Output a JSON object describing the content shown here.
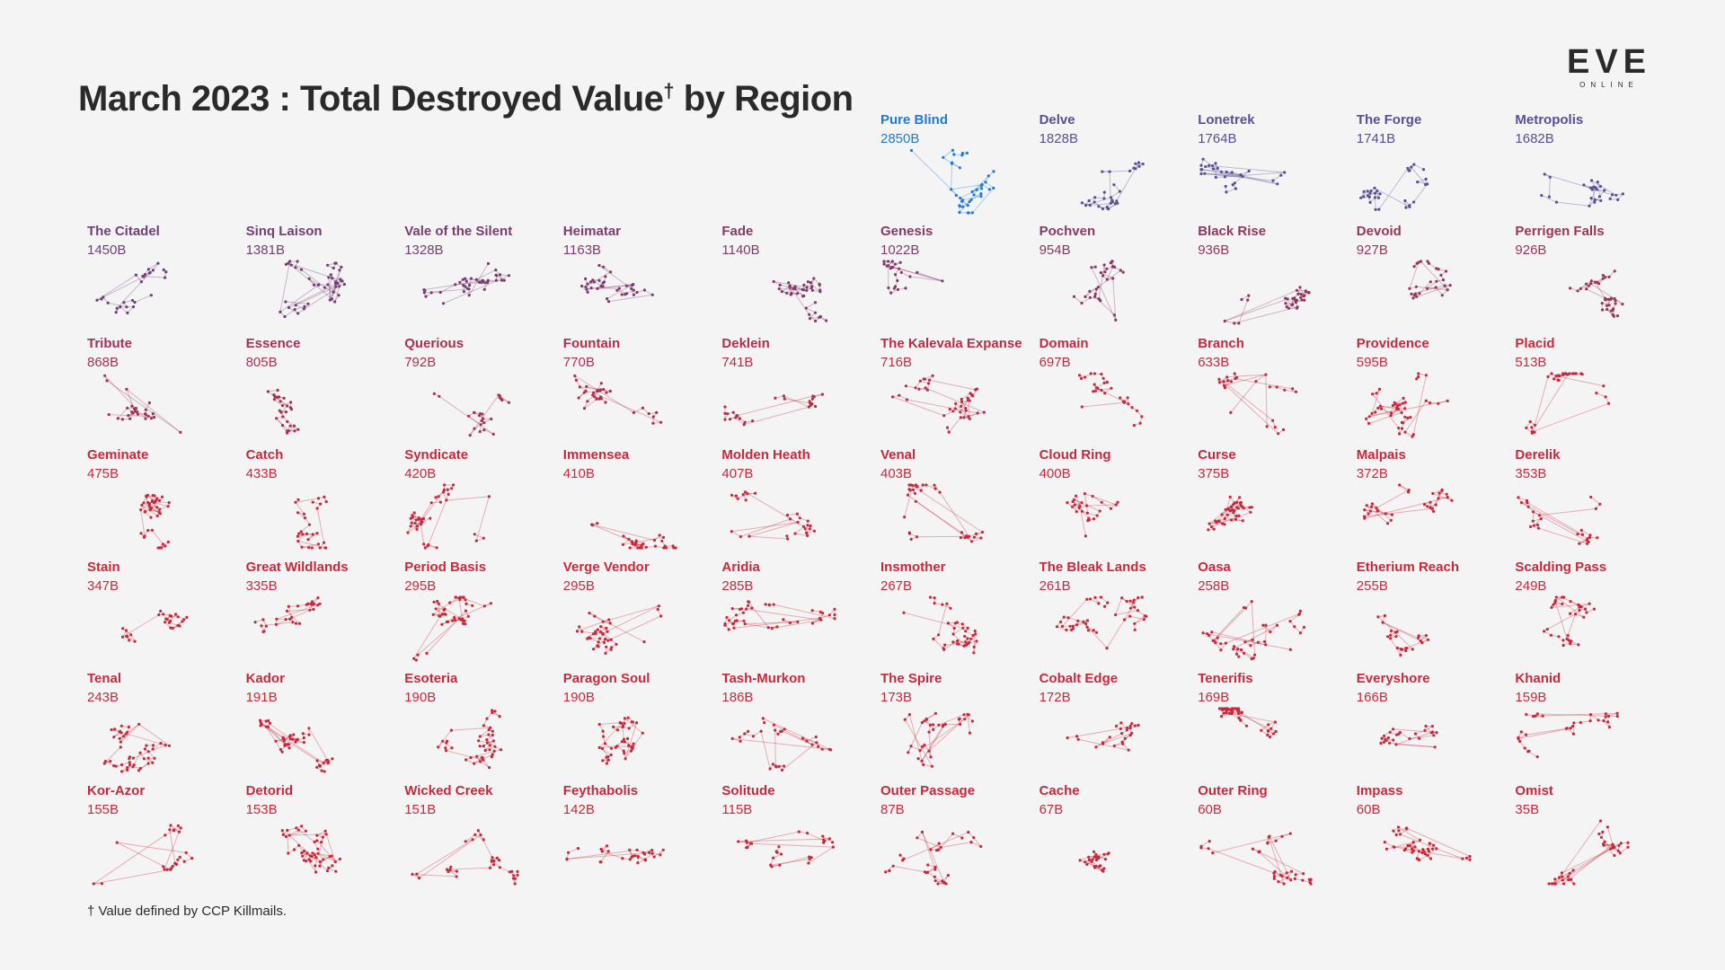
{
  "title_main": "March 2023 : Total Destroyed Value",
  "title_dagger": "†",
  "title_end": " by Region",
  "logo_word": "EVE",
  "logo_sub": "ONLINE",
  "footnote": "† Value defined by CCP Killmails.",
  "colors": {
    "highlight": "#1f7ad6",
    "top_purple": "#5a4e96",
    "low_red": "#c9283a",
    "background": "#f4f4f4",
    "text": "#2a2a2a"
  },
  "chart_data": {
    "type": "small-multiples",
    "unit": "B",
    "regions": [
      {
        "name": "Pure Blind",
        "value": "2850B",
        "amount": 2850
      },
      {
        "name": "Delve",
        "value": "1828B",
        "amount": 1828
      },
      {
        "name": "Lonetrek",
        "value": "1764B",
        "amount": 1764
      },
      {
        "name": "The Forge",
        "value": "1741B",
        "amount": 1741
      },
      {
        "name": "Metropolis",
        "value": "1682B",
        "amount": 1682
      },
      {
        "name": "The Citadel",
        "value": "1450B",
        "amount": 1450
      },
      {
        "name": "Sinq Laison",
        "value": "1381B",
        "amount": 1381
      },
      {
        "name": "Vale of the Silent",
        "value": "1328B",
        "amount": 1328
      },
      {
        "name": "Heimatar",
        "value": "1163B",
        "amount": 1163
      },
      {
        "name": "Fade",
        "value": "1140B",
        "amount": 1140
      },
      {
        "name": "Genesis",
        "value": "1022B",
        "amount": 1022
      },
      {
        "name": "Pochven",
        "value": "954B",
        "amount": 954
      },
      {
        "name": "Black Rise",
        "value": "936B",
        "amount": 936
      },
      {
        "name": "Devoid",
        "value": "927B",
        "amount": 927
      },
      {
        "name": "Perrigen Falls",
        "value": "926B",
        "amount": 926
      },
      {
        "name": "Tribute",
        "value": "868B",
        "amount": 868
      },
      {
        "name": "Essence",
        "value": "805B",
        "amount": 805
      },
      {
        "name": "Querious",
        "value": "792B",
        "amount": 792
      },
      {
        "name": "Fountain",
        "value": "770B",
        "amount": 770
      },
      {
        "name": "Deklein",
        "value": "741B",
        "amount": 741
      },
      {
        "name": "The Kalevala Expanse",
        "value": "716B",
        "amount": 716
      },
      {
        "name": "Domain",
        "value": "697B",
        "amount": 697
      },
      {
        "name": "Branch",
        "value": "633B",
        "amount": 633
      },
      {
        "name": "Providence",
        "value": "595B",
        "amount": 595
      },
      {
        "name": "Placid",
        "value": "513B",
        "amount": 513
      },
      {
        "name": "Geminate",
        "value": "475B",
        "amount": 475
      },
      {
        "name": "Catch",
        "value": "433B",
        "amount": 433
      },
      {
        "name": "Syndicate",
        "value": "420B",
        "amount": 420
      },
      {
        "name": "Immensea",
        "value": "410B",
        "amount": 410
      },
      {
        "name": "Molden Heath",
        "value": "407B",
        "amount": 407
      },
      {
        "name": "Venal",
        "value": "403B",
        "amount": 403
      },
      {
        "name": "Cloud Ring",
        "value": "400B",
        "amount": 400
      },
      {
        "name": "Curse",
        "value": "375B",
        "amount": 375
      },
      {
        "name": "Malpais",
        "value": "372B",
        "amount": 372
      },
      {
        "name": "Derelik",
        "value": "353B",
        "amount": 353
      },
      {
        "name": "Stain",
        "value": "347B",
        "amount": 347
      },
      {
        "name": "Great Wildlands",
        "value": "335B",
        "amount": 335
      },
      {
        "name": "Period Basis",
        "value": "295B",
        "amount": 295
      },
      {
        "name": "Verge Vendor",
        "value": "295B",
        "amount": 295
      },
      {
        "name": "Aridia",
        "value": "285B",
        "amount": 285
      },
      {
        "name": "Insmother",
        "value": "267B",
        "amount": 267
      },
      {
        "name": "The Bleak Lands",
        "value": "261B",
        "amount": 261
      },
      {
        "name": "Oasa",
        "value": "258B",
        "amount": 258
      },
      {
        "name": "Etherium Reach",
        "value": "255B",
        "amount": 255
      },
      {
        "name": "Scalding Pass",
        "value": "249B",
        "amount": 249
      },
      {
        "name": "Tenal",
        "value": "243B",
        "amount": 243
      },
      {
        "name": "Kador",
        "value": "191B",
        "amount": 191
      },
      {
        "name": "Esoteria",
        "value": "190B",
        "amount": 190
      },
      {
        "name": "Paragon Soul",
        "value": "190B",
        "amount": 190
      },
      {
        "name": "Tash-Murkon",
        "value": "186B",
        "amount": 186
      },
      {
        "name": "The Spire",
        "value": "173B",
        "amount": 173
      },
      {
        "name": "Cobalt Edge",
        "value": "172B",
        "amount": 172
      },
      {
        "name": "Tenerifis",
        "value": "169B",
        "amount": 169
      },
      {
        "name": "Everyshore",
        "value": "166B",
        "amount": 166
      },
      {
        "name": "Khanid",
        "value": "159B",
        "amount": 159
      },
      {
        "name": "Kor-Azor",
        "value": "155B",
        "amount": 155
      },
      {
        "name": "Detorid",
        "value": "153B",
        "amount": 153
      },
      {
        "name": "Wicked Creek",
        "value": "151B",
        "amount": 151
      },
      {
        "name": "Feythabolis",
        "value": "142B",
        "amount": 142
      },
      {
        "name": "Solitude",
        "value": "115B",
        "amount": 115
      },
      {
        "name": "Outer Passage",
        "value": "87B",
        "amount": 87
      },
      {
        "name": "Cache",
        "value": "67B",
        "amount": 67
      },
      {
        "name": "Outer Ring",
        "value": "60B",
        "amount": 60
      },
      {
        "name": "Impass",
        "value": "60B",
        "amount": 60
      },
      {
        "name": "Omist",
        "value": "35B",
        "amount": 35
      }
    ]
  }
}
